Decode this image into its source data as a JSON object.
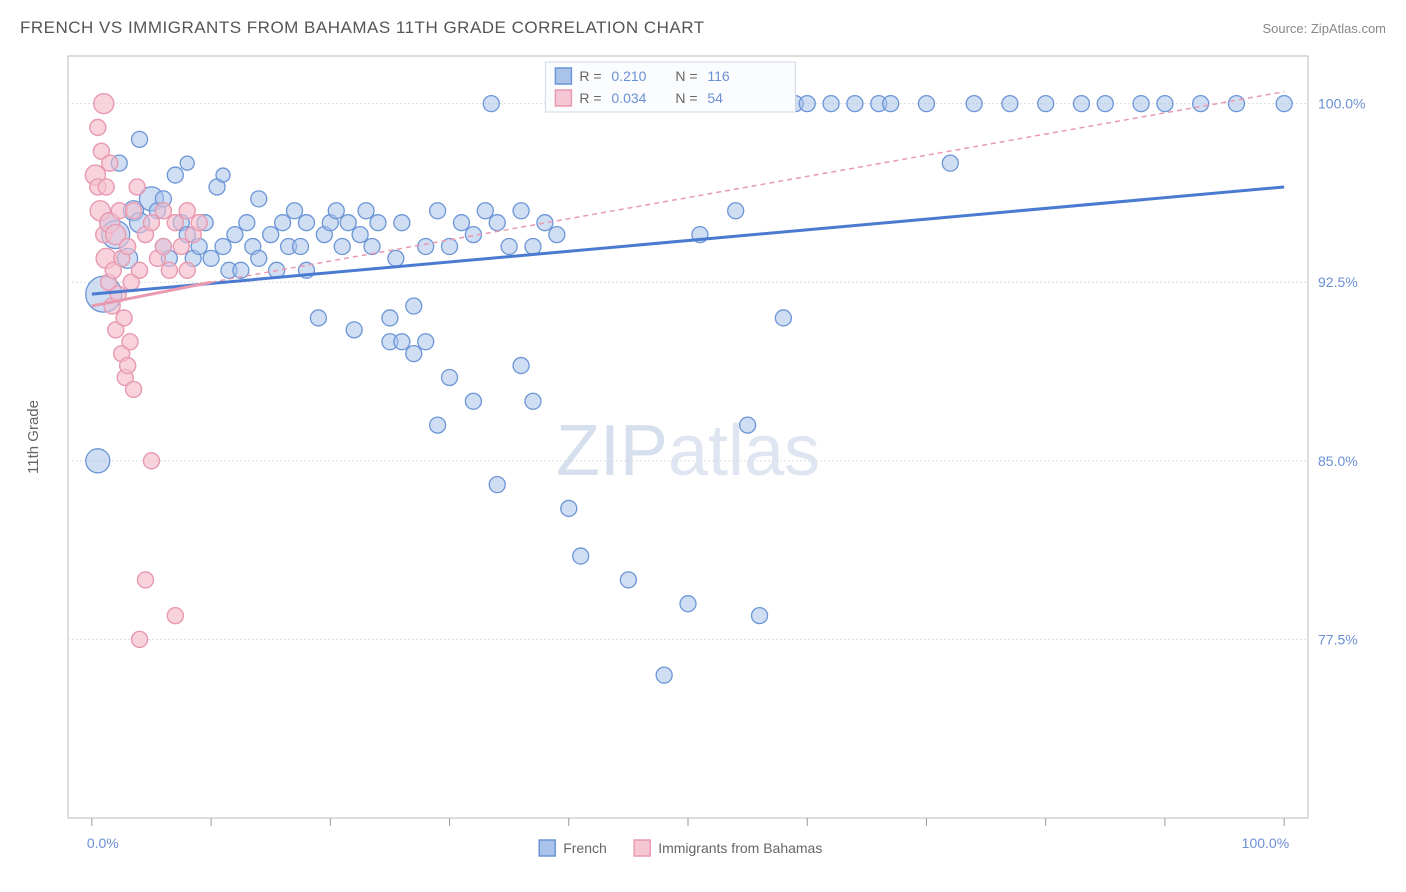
{
  "header": {
    "title": "FRENCH VS IMMIGRANTS FROM BAHAMAS 11TH GRADE CORRELATION CHART",
    "source": "Source: ZipAtlas.com"
  },
  "axes": {
    "y_label": "11th Grade",
    "x_min_label": "0.0%",
    "x_max_label": "100.0%",
    "y_ticks": [
      {
        "v": 100.0,
        "label": "100.0%"
      },
      {
        "v": 92.5,
        "label": "92.5%"
      },
      {
        "v": 85.0,
        "label": "85.0%"
      },
      {
        "v": 77.5,
        "label": "77.5%"
      }
    ],
    "x_tick_positions_pct": [
      0,
      10,
      20,
      30,
      40,
      50,
      60,
      70,
      80,
      90,
      100
    ]
  },
  "plot": {
    "xlim": [
      -2,
      102
    ],
    "ylim": [
      70,
      102
    ],
    "grid_color": "#dddddd",
    "bg": "#ffffff"
  },
  "series": {
    "blue": {
      "name": "French",
      "fill": "#a9c3ea",
      "stroke": "#6b95d6",
      "fill_opacity": 0.55,
      "trend": {
        "x1": 0,
        "y1": 92.0,
        "x2": 100,
        "y2": 96.5
      },
      "R": "0.210",
      "N": "116",
      "points": [
        {
          "x": 0.5,
          "y": 85.0,
          "r": 12
        },
        {
          "x": 1.0,
          "y": 92.0,
          "r": 18
        },
        {
          "x": 1.5,
          "y": 95.0,
          "r": 10
        },
        {
          "x": 2.0,
          "y": 94.5,
          "r": 14
        },
        {
          "x": 2.3,
          "y": 97.5,
          "r": 8
        },
        {
          "x": 3.0,
          "y": 93.5,
          "r": 10
        },
        {
          "x": 3.5,
          "y": 95.5,
          "r": 10
        },
        {
          "x": 4.0,
          "y": 95.0,
          "r": 10
        },
        {
          "x": 4.0,
          "y": 98.5,
          "r": 8
        },
        {
          "x": 5.0,
          "y": 96.0,
          "r": 12
        },
        {
          "x": 5.5,
          "y": 95.5,
          "r": 8
        },
        {
          "x": 6.0,
          "y": 94.0,
          "r": 8
        },
        {
          "x": 6.0,
          "y": 96.0,
          "r": 8
        },
        {
          "x": 6.5,
          "y": 93.5,
          "r": 8
        },
        {
          "x": 7.0,
          "y": 97.0,
          "r": 8
        },
        {
          "x": 7.5,
          "y": 95.0,
          "r": 8
        },
        {
          "x": 8.0,
          "y": 94.5,
          "r": 8
        },
        {
          "x": 8.0,
          "y": 97.5,
          "r": 7
        },
        {
          "x": 8.5,
          "y": 93.5,
          "r": 8
        },
        {
          "x": 9.0,
          "y": 94.0,
          "r": 8
        },
        {
          "x": 9.5,
          "y": 95.0,
          "r": 8
        },
        {
          "x": 10.0,
          "y": 93.5,
          "r": 8
        },
        {
          "x": 10.5,
          "y": 96.5,
          "r": 8
        },
        {
          "x": 11.0,
          "y": 94.0,
          "r": 8
        },
        {
          "x": 11.0,
          "y": 97.0,
          "r": 7
        },
        {
          "x": 11.5,
          "y": 93.0,
          "r": 8
        },
        {
          "x": 12.0,
          "y": 94.5,
          "r": 8
        },
        {
          "x": 12.5,
          "y": 93.0,
          "r": 8
        },
        {
          "x": 13.0,
          "y": 95.0,
          "r": 8
        },
        {
          "x": 13.5,
          "y": 94.0,
          "r": 8
        },
        {
          "x": 14.0,
          "y": 93.5,
          "r": 8
        },
        {
          "x": 14.0,
          "y": 96.0,
          "r": 8
        },
        {
          "x": 15.0,
          "y": 94.5,
          "r": 8
        },
        {
          "x": 15.5,
          "y": 93.0,
          "r": 8
        },
        {
          "x": 16.0,
          "y": 95.0,
          "r": 8
        },
        {
          "x": 16.5,
          "y": 94.0,
          "r": 8
        },
        {
          "x": 17.0,
          "y": 95.5,
          "r": 8
        },
        {
          "x": 17.5,
          "y": 94.0,
          "r": 8
        },
        {
          "x": 18.0,
          "y": 95.0,
          "r": 8
        },
        {
          "x": 18.0,
          "y": 93.0,
          "r": 8
        },
        {
          "x": 19.0,
          "y": 91.0,
          "r": 8
        },
        {
          "x": 19.5,
          "y": 94.5,
          "r": 8
        },
        {
          "x": 20.0,
          "y": 95.0,
          "r": 8
        },
        {
          "x": 20.5,
          "y": 95.5,
          "r": 8
        },
        {
          "x": 21.0,
          "y": 94.0,
          "r": 8
        },
        {
          "x": 21.5,
          "y": 95.0,
          "r": 8
        },
        {
          "x": 22.0,
          "y": 90.5,
          "r": 8
        },
        {
          "x": 22.5,
          "y": 94.5,
          "r": 8
        },
        {
          "x": 23.0,
          "y": 95.5,
          "r": 8
        },
        {
          "x": 23.5,
          "y": 94.0,
          "r": 8
        },
        {
          "x": 24.0,
          "y": 95.0,
          "r": 8
        },
        {
          "x": 25.0,
          "y": 91.0,
          "r": 8
        },
        {
          "x": 25.0,
          "y": 90.0,
          "r": 8
        },
        {
          "x": 25.5,
          "y": 93.5,
          "r": 8
        },
        {
          "x": 26.0,
          "y": 95.0,
          "r": 8
        },
        {
          "x": 26.0,
          "y": 90.0,
          "r": 8
        },
        {
          "x": 27.0,
          "y": 91.5,
          "r": 8
        },
        {
          "x": 27.0,
          "y": 89.5,
          "r": 8
        },
        {
          "x": 28.0,
          "y": 94.0,
          "r": 8
        },
        {
          "x": 28.0,
          "y": 90.0,
          "r": 8
        },
        {
          "x": 29.0,
          "y": 95.5,
          "r": 8
        },
        {
          "x": 29.0,
          "y": 86.5,
          "r": 8
        },
        {
          "x": 30.0,
          "y": 94.0,
          "r": 8
        },
        {
          "x": 30.0,
          "y": 88.5,
          "r": 8
        },
        {
          "x": 31.0,
          "y": 95.0,
          "r": 8
        },
        {
          "x": 32.0,
          "y": 87.5,
          "r": 8
        },
        {
          "x": 32.0,
          "y": 94.5,
          "r": 8
        },
        {
          "x": 33.0,
          "y": 95.5,
          "r": 8
        },
        {
          "x": 33.5,
          "y": 100.0,
          "r": 8
        },
        {
          "x": 34.0,
          "y": 95.0,
          "r": 8
        },
        {
          "x": 34.0,
          "y": 84.0,
          "r": 8
        },
        {
          "x": 35.0,
          "y": 94.0,
          "r": 8
        },
        {
          "x": 36.0,
          "y": 95.5,
          "r": 8
        },
        {
          "x": 36.0,
          "y": 89.0,
          "r": 8
        },
        {
          "x": 37.0,
          "y": 94.0,
          "r": 8
        },
        {
          "x": 37.0,
          "y": 87.5,
          "r": 8
        },
        {
          "x": 38.0,
          "y": 95.0,
          "r": 8
        },
        {
          "x": 39.0,
          "y": 94.5,
          "r": 8
        },
        {
          "x": 40.0,
          "y": 83.0,
          "r": 8
        },
        {
          "x": 41.0,
          "y": 81.0,
          "r": 8
        },
        {
          "x": 42.0,
          "y": 100.0,
          "r": 8
        },
        {
          "x": 43.0,
          "y": 100.0,
          "r": 8
        },
        {
          "x": 45.0,
          "y": 80.0,
          "r": 8
        },
        {
          "x": 45.0,
          "y": 100.0,
          "r": 8
        },
        {
          "x": 46.0,
          "y": 100.0,
          "r": 8
        },
        {
          "x": 47.0,
          "y": 100.0,
          "r": 8
        },
        {
          "x": 48.0,
          "y": 76.0,
          "r": 8
        },
        {
          "x": 48.0,
          "y": 100.0,
          "r": 8
        },
        {
          "x": 49.0,
          "y": 100.0,
          "r": 8
        },
        {
          "x": 50.0,
          "y": 79.0,
          "r": 8
        },
        {
          "x": 51.0,
          "y": 94.5,
          "r": 8
        },
        {
          "x": 52.0,
          "y": 100.0,
          "r": 8
        },
        {
          "x": 54.0,
          "y": 95.5,
          "r": 8
        },
        {
          "x": 55.0,
          "y": 86.5,
          "r": 8
        },
        {
          "x": 56.0,
          "y": 78.5,
          "r": 8
        },
        {
          "x": 57.0,
          "y": 100.0,
          "r": 8
        },
        {
          "x": 58.0,
          "y": 91.0,
          "r": 8
        },
        {
          "x": 59.0,
          "y": 100.0,
          "r": 8
        },
        {
          "x": 60.0,
          "y": 100.0,
          "r": 8
        },
        {
          "x": 62.0,
          "y": 100.0,
          "r": 8
        },
        {
          "x": 64.0,
          "y": 100.0,
          "r": 8
        },
        {
          "x": 66.0,
          "y": 100.0,
          "r": 8
        },
        {
          "x": 67.0,
          "y": 100.0,
          "r": 8
        },
        {
          "x": 70.0,
          "y": 100.0,
          "r": 8
        },
        {
          "x": 72.0,
          "y": 97.5,
          "r": 8
        },
        {
          "x": 74.0,
          "y": 100.0,
          "r": 8
        },
        {
          "x": 77.0,
          "y": 100.0,
          "r": 8
        },
        {
          "x": 80.0,
          "y": 100.0,
          "r": 8
        },
        {
          "x": 83.0,
          "y": 100.0,
          "r": 8
        },
        {
          "x": 85.0,
          "y": 100.0,
          "r": 8
        },
        {
          "x": 88.0,
          "y": 100.0,
          "r": 8
        },
        {
          "x": 90.0,
          "y": 100.0,
          "r": 8
        },
        {
          "x": 93.0,
          "y": 100.0,
          "r": 8
        },
        {
          "x": 96.0,
          "y": 100.0,
          "r": 8
        },
        {
          "x": 100.0,
          "y": 100.0,
          "r": 8
        }
      ]
    },
    "pink": {
      "name": "Immigrants from Bahamas",
      "fill": "#f5c6d4",
      "stroke": "#e89ab0",
      "fill_opacity": 0.55,
      "trend_solid": {
        "x1": 0,
        "y1": 91.5,
        "x2": 10,
        "y2": 92.5
      },
      "trend_dash": {
        "x1": 10,
        "y1": 92.5,
        "x2": 100,
        "y2": 100.5
      },
      "R": "0.034",
      "N": "54",
      "points": [
        {
          "x": 0.3,
          "y": 97.0,
          "r": 10
        },
        {
          "x": 0.5,
          "y": 99.0,
          "r": 8
        },
        {
          "x": 0.5,
          "y": 96.5,
          "r": 8
        },
        {
          "x": 0.7,
          "y": 95.5,
          "r": 10
        },
        {
          "x": 0.8,
          "y": 98.0,
          "r": 8
        },
        {
          "x": 1.0,
          "y": 100.0,
          "r": 10
        },
        {
          "x": 1.0,
          "y": 94.5,
          "r": 8
        },
        {
          "x": 1.2,
          "y": 93.5,
          "r": 10
        },
        {
          "x": 1.2,
          "y": 96.5,
          "r": 8
        },
        {
          "x": 1.4,
          "y": 92.5,
          "r": 8
        },
        {
          "x": 1.5,
          "y": 95.0,
          "r": 10
        },
        {
          "x": 1.5,
          "y": 97.5,
          "r": 8
        },
        {
          "x": 1.7,
          "y": 91.5,
          "r": 8
        },
        {
          "x": 1.8,
          "y": 93.0,
          "r": 8
        },
        {
          "x": 2.0,
          "y": 94.5,
          "r": 10
        },
        {
          "x": 2.0,
          "y": 90.5,
          "r": 8
        },
        {
          "x": 2.2,
          "y": 92.0,
          "r": 8
        },
        {
          "x": 2.3,
          "y": 95.5,
          "r": 8
        },
        {
          "x": 2.5,
          "y": 89.5,
          "r": 8
        },
        {
          "x": 2.5,
          "y": 93.5,
          "r": 8
        },
        {
          "x": 2.7,
          "y": 91.0,
          "r": 8
        },
        {
          "x": 2.8,
          "y": 88.5,
          "r": 8
        },
        {
          "x": 3.0,
          "y": 94.0,
          "r": 8
        },
        {
          "x": 3.0,
          "y": 89.0,
          "r": 8
        },
        {
          "x": 3.2,
          "y": 90.0,
          "r": 8
        },
        {
          "x": 3.3,
          "y": 92.5,
          "r": 8
        },
        {
          "x": 3.5,
          "y": 88.0,
          "r": 8
        },
        {
          "x": 3.5,
          "y": 95.5,
          "r": 8
        },
        {
          "x": 3.8,
          "y": 96.5,
          "r": 8
        },
        {
          "x": 4.0,
          "y": 93.0,
          "r": 8
        },
        {
          "x": 4.0,
          "y": 77.5,
          "r": 8
        },
        {
          "x": 4.5,
          "y": 94.5,
          "r": 8
        },
        {
          "x": 4.5,
          "y": 80.0,
          "r": 8
        },
        {
          "x": 5.0,
          "y": 95.0,
          "r": 8
        },
        {
          "x": 5.0,
          "y": 85.0,
          "r": 8
        },
        {
          "x": 5.5,
          "y": 93.5,
          "r": 8
        },
        {
          "x": 6.0,
          "y": 94.0,
          "r": 8
        },
        {
          "x": 6.0,
          "y": 95.5,
          "r": 8
        },
        {
          "x": 6.5,
          "y": 93.0,
          "r": 8
        },
        {
          "x": 7.0,
          "y": 95.0,
          "r": 8
        },
        {
          "x": 7.0,
          "y": 78.5,
          "r": 8
        },
        {
          "x": 7.5,
          "y": 94.0,
          "r": 8
        },
        {
          "x": 8.0,
          "y": 95.5,
          "r": 8
        },
        {
          "x": 8.0,
          "y": 93.0,
          "r": 8
        },
        {
          "x": 8.5,
          "y": 94.5,
          "r": 8
        },
        {
          "x": 9.0,
          "y": 95.0,
          "r": 8
        }
      ]
    }
  },
  "legend_top": {
    "r_label": "R =",
    "n_label": "N ="
  },
  "legend_bottom": {
    "items": [
      "French",
      "Immigrants from Bahamas"
    ]
  },
  "watermark": "ZIPatlas"
}
